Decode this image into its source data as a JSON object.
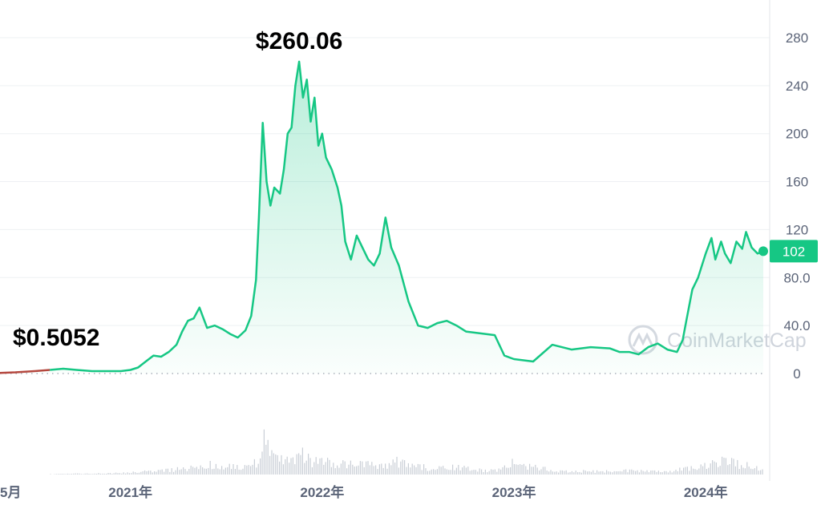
{
  "chart_data": {
    "type": "area",
    "title": "",
    "xlabel": "",
    "ylabel": "",
    "ylim": [
      0,
      290
    ],
    "y_ticks": [
      {
        "value": 0,
        "label": "0"
      },
      {
        "value": 40,
        "label": "40.0"
      },
      {
        "value": 80,
        "label": "80.0"
      },
      {
        "value": 120,
        "label": "120"
      },
      {
        "value": 160,
        "label": "160"
      },
      {
        "value": 200,
        "label": "200"
      },
      {
        "value": 240,
        "label": "240"
      },
      {
        "value": 280,
        "label": "280"
      }
    ],
    "x_ticks": [
      {
        "value": 2020.35,
        "label": "5月"
      },
      {
        "value": 2021.0,
        "label": "2021年"
      },
      {
        "value": 2022.0,
        "label": "2022年"
      },
      {
        "value": 2023.0,
        "label": "2023年"
      },
      {
        "value": 2024.0,
        "label": "2024年"
      }
    ],
    "xlim": [
      2020.32,
      2024.3
    ],
    "grid": true,
    "baseline_dotted": true,
    "series": [
      {
        "color": "#16c784",
        "early_color": "#b5483f",
        "early_until": 2020.6,
        "x": [
          2020.32,
          2020.4,
          2020.5,
          2020.58,
          2020.65,
          2020.72,
          2020.8,
          2020.88,
          2020.95,
          2021.0,
          2021.04,
          2021.08,
          2021.12,
          2021.16,
          2021.2,
          2021.24,
          2021.27,
          2021.3,
          2021.33,
          2021.36,
          2021.4,
          2021.44,
          2021.48,
          2021.52,
          2021.56,
          2021.6,
          2021.63,
          2021.655,
          2021.67,
          2021.69,
          2021.71,
          2021.73,
          2021.75,
          2021.78,
          2021.8,
          2021.82,
          2021.84,
          2021.86,
          2021.88,
          2021.9,
          2021.92,
          2021.94,
          2021.96,
          2021.98,
          2022.0,
          2022.02,
          2022.05,
          2022.08,
          2022.1,
          2022.12,
          2022.15,
          2022.18,
          2022.21,
          2022.24,
          2022.27,
          2022.3,
          2022.33,
          2022.36,
          2022.4,
          2022.45,
          2022.5,
          2022.55,
          2022.6,
          2022.65,
          2022.7,
          2022.75,
          2022.8,
          2022.85,
          2022.9,
          2022.95,
          2023.0,
          2023.1,
          2023.2,
          2023.3,
          2023.4,
          2023.5,
          2023.55,
          2023.6,
          2023.65,
          2023.7,
          2023.75,
          2023.8,
          2023.85,
          2023.88,
          2023.9,
          2023.93,
          2023.96,
          2024.0,
          2024.03,
          2024.05,
          2024.08,
          2024.1,
          2024.13,
          2024.16,
          2024.19,
          2024.21,
          2024.24,
          2024.27,
          2024.3
        ],
        "y": [
          0.5052,
          1,
          2,
          3,
          4,
          3,
          2,
          2,
          2,
          3,
          5,
          10,
          15,
          14,
          18,
          24,
          35,
          44,
          46,
          55,
          38,
          40,
          37,
          33,
          30,
          36,
          48,
          78,
          130,
          209,
          160,
          140,
          155,
          150,
          170,
          200,
          205,
          240,
          260,
          230,
          245,
          210,
          230,
          190,
          200,
          180,
          170,
          155,
          140,
          110,
          95,
          115,
          105,
          95,
          90,
          100,
          130,
          105,
          90,
          60,
          40,
          38,
          42,
          44,
          40,
          35,
          34,
          33,
          32,
          15,
          12,
          10,
          24,
          20,
          22,
          21,
          18,
          18,
          16,
          22,
          25,
          20,
          18,
          28,
          45,
          70,
          80,
          100,
          113,
          95,
          110,
          100,
          92,
          110,
          104,
          118,
          105,
          100,
          102
        ]
      }
    ],
    "annotations": [
      {
        "x": 2021.88,
        "y": 260.06,
        "label": "$260.06"
      },
      {
        "x": 2020.32,
        "y": 0.5052,
        "label": "$0.5052"
      }
    ],
    "current_value_label": "102",
    "current_value": 102,
    "volume": {
      "color": "#c9ced6",
      "x": [
        2020.32,
        2020.5,
        2020.7,
        2020.9,
        2021.1,
        2021.2,
        2021.3,
        2021.4,
        2021.5,
        2021.6,
        2021.65,
        2021.68,
        2021.7,
        2021.72,
        2021.75,
        2021.8,
        2021.85,
        2021.9,
        2021.95,
        2022.0,
        2022.1,
        2022.2,
        2022.3,
        2022.4,
        2022.5,
        2022.6,
        2022.7,
        2022.8,
        2022.9,
        2023.0,
        2023.2,
        2023.4,
        2023.6,
        2023.8,
        2023.9,
        2024.0,
        2024.05,
        2024.1,
        2024.15,
        2024.2,
        2024.25,
        2024.3
      ],
      "v": [
        0,
        0,
        0.2,
        0.3,
        0.8,
        1.2,
        1.5,
        2.5,
        2.0,
        1.8,
        3.0,
        5.0,
        13.0,
        4.0,
        5.0,
        4.0,
        3.0,
        5.0,
        3.0,
        3.5,
        2.5,
        3.0,
        2.0,
        3.5,
        2.0,
        1.5,
        2.0,
        1.2,
        1.0,
        3.0,
        1.0,
        0.8,
        1.0,
        0.8,
        1.5,
        2.5,
        3.5,
        4.0,
        3.0,
        2.5,
        2.0,
        1.5
      ]
    }
  },
  "watermark": {
    "text": "CoinMarketCap",
    "icon": "coinmarketcap-logo-icon"
  },
  "colors": {
    "line": "#16c784",
    "badge": "#16c784",
    "grid": "#eef0f3"
  }
}
